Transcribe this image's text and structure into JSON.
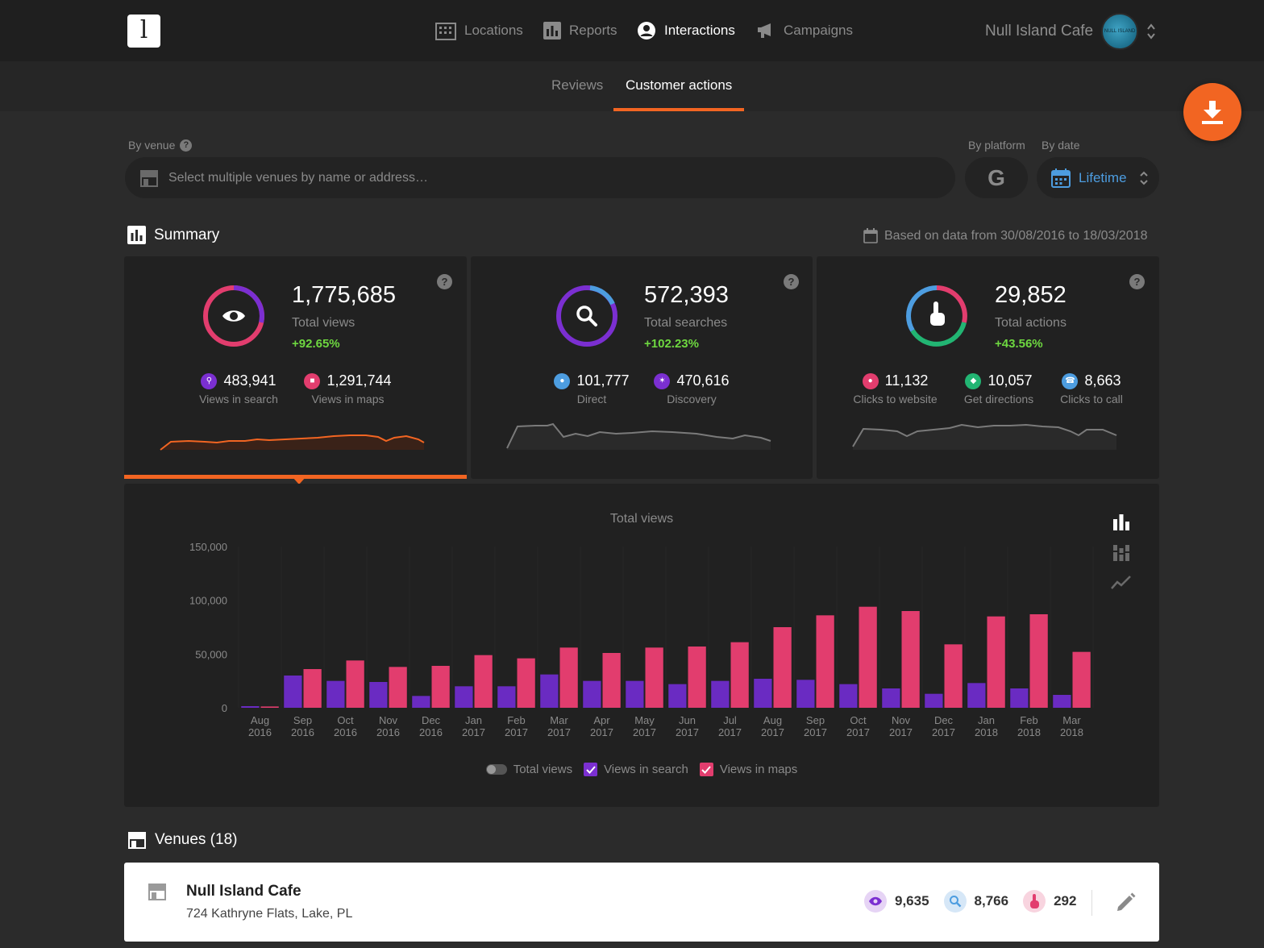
{
  "app": {
    "logo_text": "l",
    "nav": [
      {
        "label": "Locations",
        "active": false
      },
      {
        "label": "Reports",
        "active": false
      },
      {
        "label": "Interactions",
        "active": true
      },
      {
        "label": "Campaigns",
        "active": false
      }
    ],
    "current_venue": "Null Island Cafe",
    "avatar_text": "NULL ISLAND"
  },
  "subtabs": [
    {
      "label": "Reviews",
      "active": false
    },
    {
      "label": "Customer actions",
      "active": true
    }
  ],
  "filters": {
    "venue_label": "By venue",
    "venue_placeholder": "Select multiple venues by name or address…",
    "platform_label": "By platform",
    "platform_value": "G",
    "date_label": "By date",
    "date_value": "Lifetime"
  },
  "summary": {
    "title": "Summary",
    "based_on": "Based on data from 30/08/2016 to 18/03/2018",
    "help_icon": "?",
    "cards": [
      {
        "value": "1,775,685",
        "label": "Total views",
        "delta": "+92.65%",
        "icon": "eye-icon",
        "stats": [
          {
            "value": "483,941",
            "label": "Views in search",
            "color": "#7b2fd1",
            "icon": "search-icon"
          },
          {
            "value": "1,291,744",
            "label": "Views in maps",
            "color": "#e23d6e",
            "icon": "map-icon"
          }
        ]
      },
      {
        "value": "572,393",
        "label": "Total searches",
        "delta": "+102.23%",
        "icon": "search-icon",
        "stats": [
          {
            "value": "101,777",
            "label": "Direct",
            "color": "#4d9de0",
            "icon": "pin-icon"
          },
          {
            "value": "470,616",
            "label": "Discovery",
            "color": "#7b2fd1",
            "icon": "compass-icon"
          }
        ]
      },
      {
        "value": "29,852",
        "label": "Total actions",
        "delta": "+43.56%",
        "icon": "pointer-icon",
        "stats": [
          {
            "value": "11,132",
            "label": "Clicks to website",
            "color": "#e23d6e",
            "icon": "globe-icon"
          },
          {
            "value": "10,057",
            "label": "Get directions",
            "color": "#22b573",
            "icon": "directions-icon"
          },
          {
            "value": "8,663",
            "label": "Clicks to call",
            "color": "#4d9de0",
            "icon": "phone-icon"
          }
        ]
      }
    ]
  },
  "chart_data": {
    "type": "bar",
    "title": "Total views",
    "categories": [
      "Aug 2016",
      "Sep 2016",
      "Oct 2016",
      "Nov 2016",
      "Dec 2016",
      "Jan 2017",
      "Feb 2017",
      "Mar 2017",
      "Apr 2017",
      "May 2017",
      "Jun 2017",
      "Jul 2017",
      "Aug 2017",
      "Sep 2017",
      "Oct 2017",
      "Nov 2017",
      "Dec 2017",
      "Jan 2018",
      "Feb 2018",
      "Mar 2018"
    ],
    "y_ticks": [
      "150,000",
      "100,000",
      "50,000",
      "0"
    ],
    "ylim": [
      0,
      150000
    ],
    "series": [
      {
        "name": "Views in search",
        "color": "#6a2bc2",
        "values": [
          1500,
          30000,
          25000,
          24000,
          11000,
          20000,
          20000,
          31000,
          25000,
          25000,
          22000,
          25000,
          27000,
          26000,
          22000,
          18000,
          13000,
          23000,
          18000,
          12000
        ]
      },
      {
        "name": "Views in maps",
        "color": "#e23d6e",
        "values": [
          1200,
          36000,
          44000,
          38000,
          39000,
          49000,
          46000,
          56000,
          51000,
          56000,
          57000,
          61000,
          75000,
          86000,
          94000,
          90000,
          59000,
          85000,
          87000,
          52000
        ]
      }
    ],
    "legend": [
      {
        "label": "Total views",
        "kind": "toggle"
      },
      {
        "label": "Views in search",
        "kind": "checkbox",
        "color": "#7b2fd1"
      },
      {
        "label": "Views in maps",
        "kind": "checkbox",
        "color": "#e23d6e"
      }
    ],
    "grid": true
  },
  "venues": {
    "title": "Venues (18)",
    "items": [
      {
        "name": "Null Island Cafe",
        "address": "724 Kathryne Flats, Lake, PL",
        "views": "9,635",
        "searches": "8,766",
        "actions": "292"
      }
    ]
  },
  "colors": {
    "accent": "#f26522",
    "blue": "#4d9de0",
    "green": "#6ed840",
    "purple": "#7b2fd1",
    "pink": "#e23d6e"
  }
}
